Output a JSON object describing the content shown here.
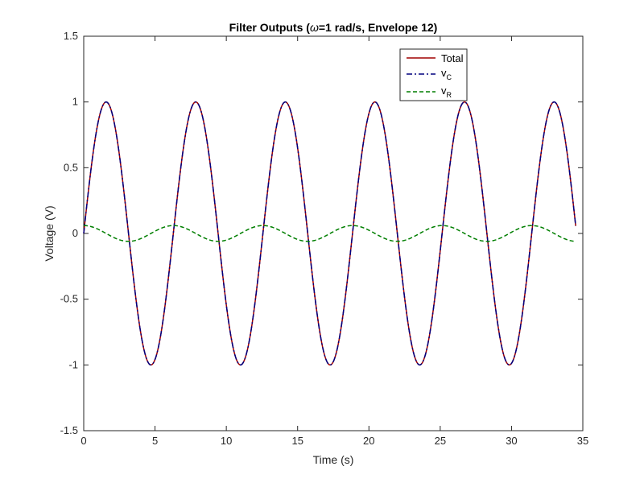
{
  "chart_data": {
    "type": "line",
    "title_prefix": "Filter Outputs (",
    "title_symbol": "ω",
    "title_suffix": "=1 rad/s, Envelope 12)",
    "xlabel": "Time (s)",
    "ylabel": "Voltage (V)",
    "xlim": [
      0,
      35
    ],
    "ylim": [
      -1.5,
      1.5
    ],
    "x_ticks": [
      "0",
      "5",
      "10",
      "15",
      "20",
      "25",
      "30",
      "35"
    ],
    "y_ticks": [
      "-1.5",
      "-1",
      "-0.5",
      "0",
      "0.5",
      "1",
      "1.5"
    ],
    "grid": false,
    "legend_position": "top-right",
    "x_range_of_data": [
      0,
      34.5
    ],
    "series": [
      {
        "name": "Total",
        "color": "#a00000",
        "style": "solid",
        "formula": "sin(t)",
        "amplitude": 1.0,
        "peaks_at": [
          1.57,
          7.85,
          14.14,
          20.42,
          26.7,
          32.99
        ],
        "troughs_at": [
          4.71,
          11.0,
          17.28,
          23.56,
          29.85
        ]
      },
      {
        "name_main": "v",
        "name_sub": "C",
        "color": "#00007f",
        "style": "dashdot",
        "formula": "sin(t)",
        "amplitude": 1.0
      },
      {
        "name_main": "v",
        "name_sub": "R",
        "color": "#007f00",
        "style": "dashed",
        "formula": "0.06*cos(t)",
        "amplitude": 0.06
      }
    ]
  }
}
